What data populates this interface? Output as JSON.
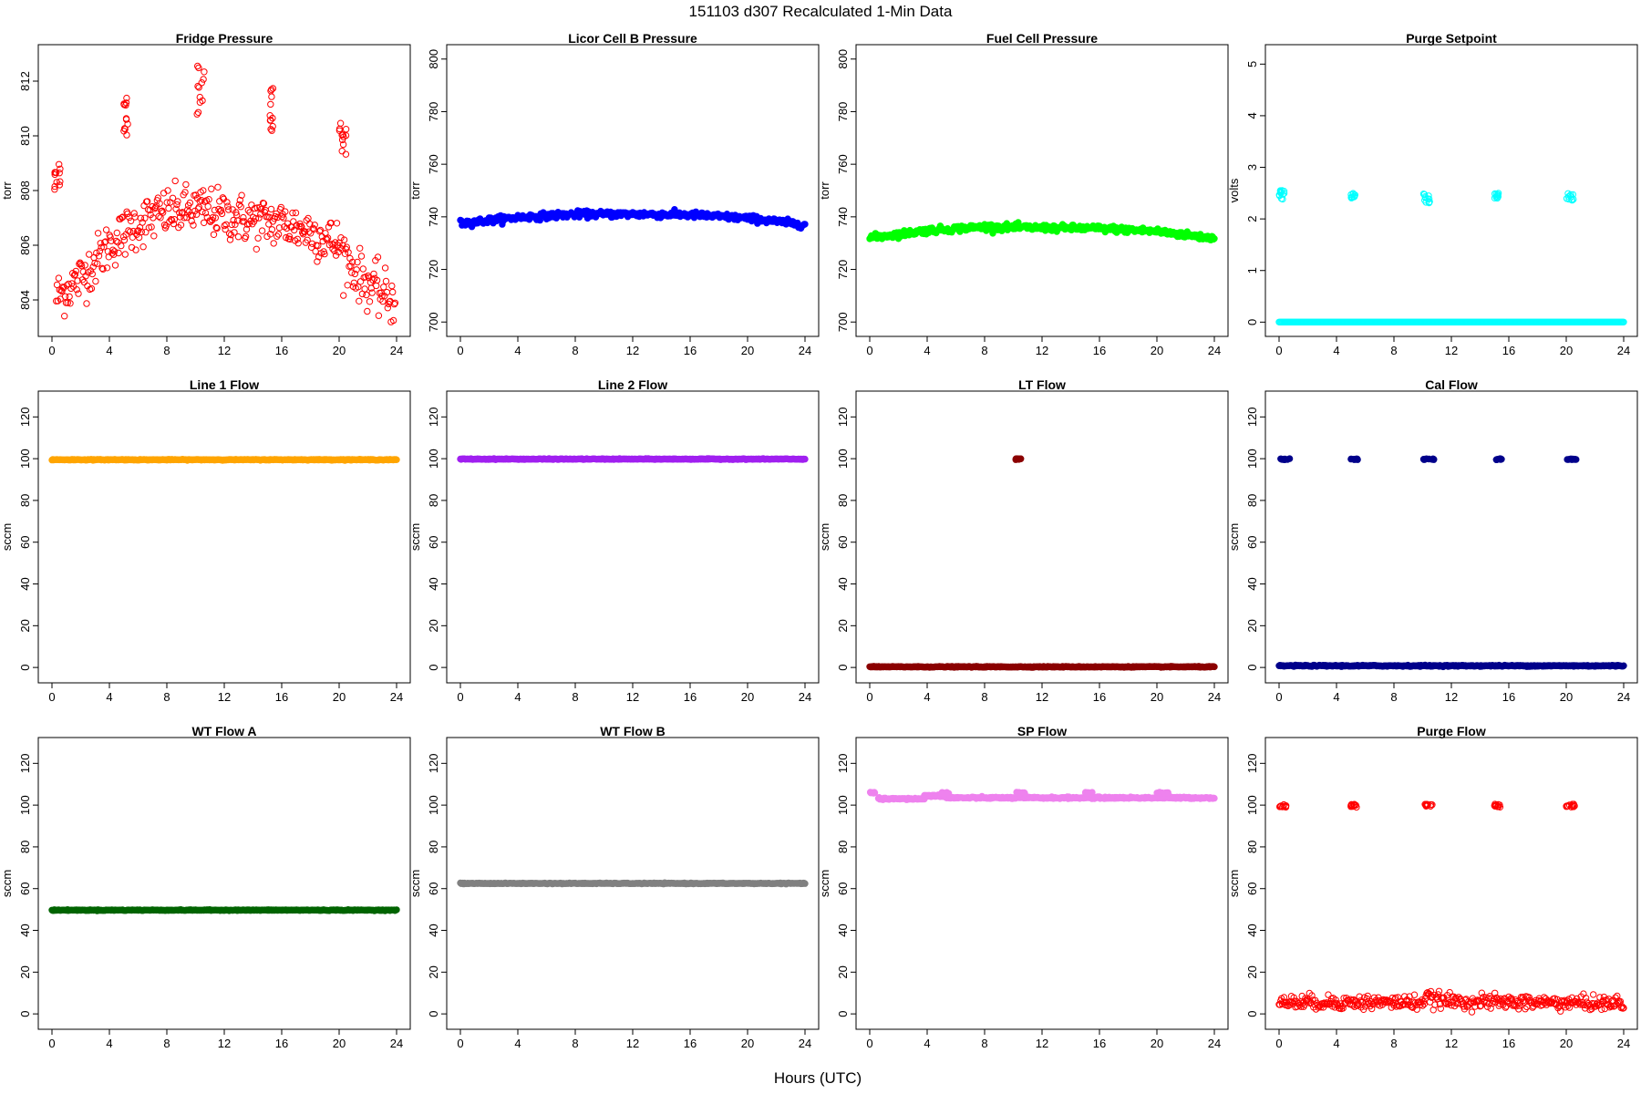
{
  "title": "151103   d307   Recalculated 1-Min Data",
  "xlabel": "Hours (UTC)",
  "chart_data": [
    {
      "type": "scatter",
      "title": "Fridge Pressure",
      "ylabel": "torr",
      "color": "#ff0000",
      "filled": false,
      "xlim": [
        0,
        24
      ],
      "ylim": [
        803.0,
        813.0
      ],
      "xticks": [
        0,
        4,
        8,
        12,
        16,
        20,
        24
      ],
      "yticks": [
        804,
        806,
        808,
        810,
        812
      ],
      "series": [
        {
          "kind": "trend",
          "x": [
            0.3,
            2,
            4,
            6,
            8,
            10,
            12,
            14,
            16,
            18,
            20,
            21,
            22,
            23.9
          ],
          "y": [
            804.1,
            804.8,
            806.0,
            806.8,
            807.2,
            807.3,
            807.1,
            806.9,
            806.8,
            806.5,
            806.0,
            805.1,
            804.6,
            803.9
          ],
          "noise": 0.45
        },
        {
          "kind": "cluster",
          "x": [
            0.1,
            0.6
          ],
          "y": [
            808.0,
            809.0
          ]
        },
        {
          "kind": "cluster",
          "x": [
            5.0,
            5.3
          ],
          "y": [
            810.0,
            811.5
          ]
        },
        {
          "kind": "cluster",
          "x": [
            10.1,
            10.6
          ],
          "y": [
            810.7,
            812.8
          ]
        },
        {
          "kind": "cluster",
          "x": [
            15.0,
            15.4
          ],
          "y": [
            810.1,
            811.8
          ]
        },
        {
          "kind": "cluster",
          "x": [
            20.0,
            20.5
          ],
          "y": [
            809.2,
            810.5
          ]
        }
      ]
    },
    {
      "type": "scatter",
      "title": "Licor Cell B Pressure",
      "ylabel": "torr",
      "color": "#0000ff",
      "filled": true,
      "xlim": [
        0,
        24
      ],
      "ylim": [
        698,
        802
      ],
      "xticks": [
        0,
        4,
        8,
        12,
        16,
        20,
        24
      ],
      "yticks": [
        700,
        720,
        740,
        760,
        780,
        800
      ],
      "series": [
        {
          "kind": "trend",
          "x": [
            0,
            4,
            8,
            12,
            16,
            20,
            24
          ],
          "y": [
            737.5,
            739.8,
            741.0,
            741.0,
            740.8,
            739.5,
            737.0
          ],
          "noise": 0.6
        }
      ]
    },
    {
      "type": "scatter",
      "title": "Fuel Cell Pressure",
      "ylabel": "torr",
      "color": "#00ff00",
      "filled": true,
      "xlim": [
        0,
        24
      ],
      "ylim": [
        698,
        802
      ],
      "xticks": [
        0,
        4,
        8,
        12,
        16,
        20,
        24
      ],
      "yticks": [
        700,
        720,
        740,
        760,
        780,
        800
      ],
      "series": [
        {
          "kind": "trend",
          "x": [
            0,
            4,
            8,
            12,
            16,
            20,
            24
          ],
          "y": [
            732.0,
            734.8,
            736.2,
            735.8,
            735.6,
            734.5,
            731.8
          ],
          "noise": 0.6
        }
      ]
    },
    {
      "type": "scatter",
      "title": "Purge Setpoint",
      "ylabel": "volts",
      "color": "#00ffff",
      "filled": false,
      "xlim": [
        0,
        24
      ],
      "ylim": [
        -0.1,
        5.2
      ],
      "xticks": [
        0,
        4,
        8,
        12,
        16,
        20,
        24
      ],
      "yticks": [
        0,
        1,
        2,
        3,
        4,
        5
      ],
      "series": [
        {
          "kind": "trend",
          "x": [
            0,
            24
          ],
          "y": [
            0,
            0
          ],
          "noise": 0.0
        },
        {
          "kind": "cluster",
          "x": [
            0.0,
            0.4
          ],
          "y": [
            2.35,
            2.55
          ]
        },
        {
          "kind": "cluster",
          "x": [
            5.0,
            5.3
          ],
          "y": [
            2.4,
            2.5
          ]
        },
        {
          "kind": "cluster",
          "x": [
            10.0,
            10.5
          ],
          "y": [
            2.3,
            2.5
          ]
        },
        {
          "kind": "cluster",
          "x": [
            15.0,
            15.3
          ],
          "y": [
            2.4,
            2.5
          ]
        },
        {
          "kind": "cluster",
          "x": [
            20.0,
            20.5
          ],
          "y": [
            2.35,
            2.5
          ]
        }
      ]
    },
    {
      "type": "scatter",
      "title": "Line 1 Flow",
      "ylabel": "sccm",
      "color": "#ffa500",
      "filled": true,
      "xlim": [
        0,
        24
      ],
      "ylim": [
        -3,
        128
      ],
      "xticks": [
        0,
        4,
        8,
        12,
        16,
        20,
        24
      ],
      "yticks": [
        0,
        20,
        40,
        60,
        80,
        100,
        120
      ],
      "series": [
        {
          "kind": "trend",
          "x": [
            0,
            24
          ],
          "y": [
            99.5,
            99.5
          ],
          "noise": 0.1
        }
      ]
    },
    {
      "type": "scatter",
      "title": "Line 2 Flow",
      "ylabel": "sccm",
      "color": "#a020f0",
      "filled": true,
      "xlim": [
        0,
        24
      ],
      "ylim": [
        -3,
        128
      ],
      "xticks": [
        0,
        4,
        8,
        12,
        16,
        20,
        24
      ],
      "yticks": [
        0,
        20,
        40,
        60,
        80,
        100,
        120
      ],
      "series": [
        {
          "kind": "trend",
          "x": [
            0,
            24
          ],
          "y": [
            99.8,
            99.8
          ],
          "noise": 0.1
        }
      ]
    },
    {
      "type": "scatter",
      "title": "LT Flow",
      "ylabel": "sccm",
      "color": "#8b0000",
      "filled": true,
      "xlim": [
        0,
        24
      ],
      "ylim": [
        -3,
        128
      ],
      "xticks": [
        0,
        4,
        8,
        12,
        16,
        20,
        24
      ],
      "yticks": [
        0,
        20,
        40,
        60,
        80,
        100,
        120
      ],
      "series": [
        {
          "kind": "trend",
          "x": [
            0,
            24
          ],
          "y": [
            0.3,
            0.3
          ],
          "noise": 0.1
        },
        {
          "kind": "cluster",
          "x": [
            10.1,
            10.6
          ],
          "y": [
            99.5,
            100.0
          ]
        }
      ]
    },
    {
      "type": "scatter",
      "title": "Cal Flow",
      "ylabel": "sccm",
      "color": "#00008b",
      "filled": true,
      "xlim": [
        0,
        24
      ],
      "ylim": [
        -3,
        128
      ],
      "xticks": [
        0,
        4,
        8,
        12,
        16,
        20,
        24
      ],
      "yticks": [
        0,
        20,
        40,
        60,
        80,
        100,
        120
      ],
      "series": [
        {
          "kind": "trend",
          "x": [
            0,
            24
          ],
          "y": [
            0.8,
            0.8
          ],
          "noise": 0.15
        },
        {
          "kind": "cluster",
          "x": [
            0.1,
            0.8
          ],
          "y": [
            99.5,
            100.0
          ]
        },
        {
          "kind": "cluster",
          "x": [
            5.0,
            5.5
          ],
          "y": [
            99.5,
            100.0
          ]
        },
        {
          "kind": "cluster",
          "x": [
            10.0,
            10.8
          ],
          "y": [
            99.5,
            100.0
          ]
        },
        {
          "kind": "cluster",
          "x": [
            15.0,
            15.5
          ],
          "y": [
            99.5,
            100.0
          ]
        },
        {
          "kind": "cluster",
          "x": [
            20.0,
            20.7
          ],
          "y": [
            99.5,
            100.0
          ]
        }
      ]
    },
    {
      "type": "scatter",
      "title": "WT Flow A",
      "ylabel": "sccm",
      "color": "#006400",
      "filled": true,
      "xlim": [
        0,
        24
      ],
      "ylim": [
        -3,
        128
      ],
      "xticks": [
        0,
        4,
        8,
        12,
        16,
        20,
        24
      ],
      "yticks": [
        0,
        20,
        40,
        60,
        80,
        100,
        120
      ],
      "series": [
        {
          "kind": "trend",
          "x": [
            0,
            24
          ],
          "y": [
            49.7,
            49.7
          ],
          "noise": 0.1
        }
      ]
    },
    {
      "type": "scatter",
      "title": "WT Flow B",
      "ylabel": "sccm",
      "color": "#808080",
      "filled": true,
      "xlim": [
        0,
        24
      ],
      "ylim": [
        -3,
        128
      ],
      "xticks": [
        0,
        4,
        8,
        12,
        16,
        20,
        24
      ],
      "yticks": [
        0,
        20,
        40,
        60,
        80,
        100,
        120
      ],
      "series": [
        {
          "kind": "trend",
          "x": [
            0,
            24
          ],
          "y": [
            62.5,
            62.5
          ],
          "noise": 0.1
        }
      ]
    },
    {
      "type": "scatter",
      "title": "SP Flow",
      "ylabel": "sccm",
      "color": "#ee82ee",
      "filled": true,
      "xlim": [
        0,
        24
      ],
      "ylim": [
        -3,
        128
      ],
      "xticks": [
        0,
        4,
        8,
        12,
        16,
        20,
        24
      ],
      "yticks": [
        0,
        20,
        40,
        60,
        80,
        100,
        120
      ],
      "series": [
        {
          "kind": "trend",
          "x": [
            0.6,
            3.8
          ],
          "y": [
            103.0,
            103.0
          ],
          "noise": 0.2
        },
        {
          "kind": "trend",
          "x": [
            3.8,
            5.3
          ],
          "y": [
            104.5,
            104.5
          ],
          "noise": 0.2
        },
        {
          "kind": "trend",
          "x": [
            5.3,
            24
          ],
          "y": [
            103.5,
            103.5
          ],
          "noise": 0.2
        },
        {
          "kind": "cluster",
          "x": [
            0.0,
            0.6
          ],
          "y": [
            105.5,
            106.2
          ]
        },
        {
          "kind": "cluster",
          "x": [
            5.0,
            5.5
          ],
          "y": [
            105.5,
            106.2
          ]
        },
        {
          "kind": "cluster",
          "x": [
            10.0,
            10.8
          ],
          "y": [
            105.5,
            106.2
          ]
        },
        {
          "kind": "cluster",
          "x": [
            15.0,
            15.5
          ],
          "y": [
            105.5,
            106.2
          ]
        },
        {
          "kind": "cluster",
          "x": [
            20.0,
            20.8
          ],
          "y": [
            105.5,
            106.2
          ]
        }
      ]
    },
    {
      "type": "scatter",
      "title": "Purge Flow",
      "ylabel": "sccm",
      "color": "#ff0000",
      "filled": false,
      "xlim": [
        0,
        24
      ],
      "ylim": [
        -3,
        128
      ],
      "xticks": [
        0,
        4,
        8,
        12,
        16,
        20,
        24
      ],
      "yticks": [
        0,
        20,
        40,
        60,
        80,
        100,
        120
      ],
      "series": [
        {
          "kind": "trend",
          "x": [
            0,
            10,
            10.2,
            12,
            24
          ],
          "y": [
            5.5,
            5.5,
            7.5,
            6.0,
            5.0
          ],
          "noise": 1.7
        },
        {
          "kind": "cluster",
          "x": [
            0.0,
            0.5
          ],
          "y": [
            99.0,
            100.5
          ]
        },
        {
          "kind": "cluster",
          "x": [
            5.0,
            5.4
          ],
          "y": [
            99.0,
            100.5
          ]
        },
        {
          "kind": "cluster",
          "x": [
            10.0,
            10.7
          ],
          "y": [
            99.0,
            100.5
          ]
        },
        {
          "kind": "cluster",
          "x": [
            15.0,
            15.4
          ],
          "y": [
            99.0,
            100.5
          ]
        },
        {
          "kind": "cluster",
          "x": [
            20.0,
            20.6
          ],
          "y": [
            99.0,
            100.5
          ]
        }
      ]
    }
  ]
}
